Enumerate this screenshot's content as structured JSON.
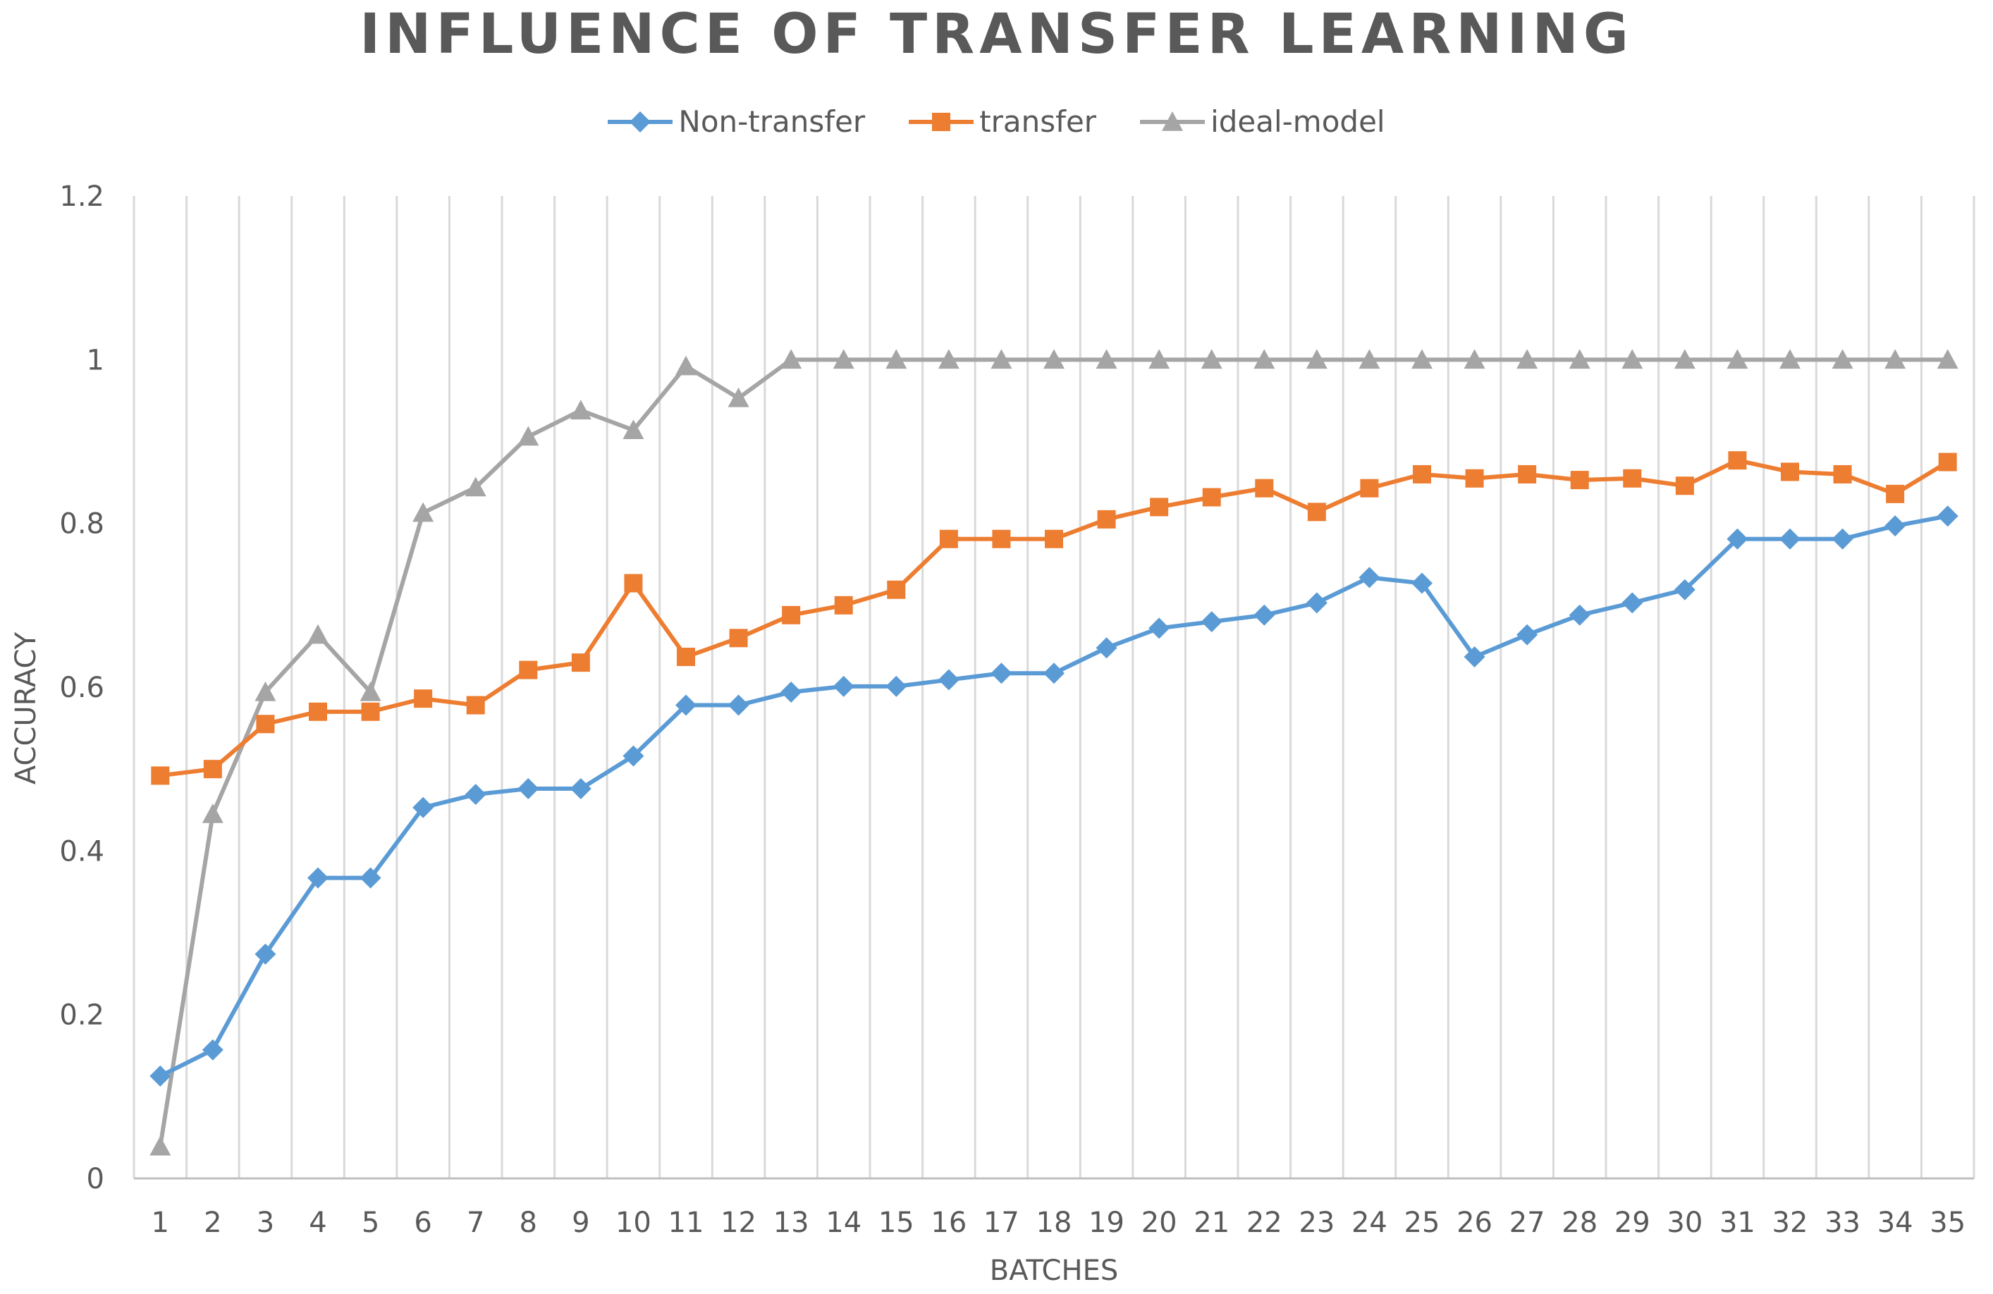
{
  "chart_data": {
    "type": "line",
    "title": "INFLUENCE OF TRANSFER LEARNING",
    "xlabel": "BATCHES",
    "ylabel": "ACCURACY",
    "ylim": [
      0,
      1.2
    ],
    "yticks": [
      "0",
      "0.2",
      "0.4",
      "0.6",
      "0.8",
      "1",
      "1.2"
    ],
    "grid": "vertical",
    "legend_position": "top",
    "categories": [
      "1",
      "2",
      "3",
      "4",
      "5",
      "6",
      "7",
      "8",
      "9",
      "10",
      "11",
      "12",
      "13",
      "14",
      "15",
      "16",
      "17",
      "18",
      "19",
      "20",
      "21",
      "22",
      "23",
      "24",
      "25",
      "26",
      "27",
      "28",
      "29",
      "30",
      "31",
      "32",
      "33",
      "34",
      "35"
    ],
    "series": [
      {
        "name": "Non-transfer",
        "color": "#5b9bd5",
        "marker": "diamond",
        "values": [
          0.125,
          0.157,
          0.274,
          0.367,
          0.367,
          0.453,
          0.469,
          0.476,
          0.476,
          0.516,
          0.578,
          0.578,
          0.594,
          0.601,
          0.601,
          0.609,
          0.617,
          0.617,
          0.648,
          0.672,
          0.68,
          0.688,
          0.703,
          0.734,
          0.727,
          0.637,
          0.664,
          0.688,
          0.703,
          0.719,
          0.781,
          0.781,
          0.781,
          0.797,
          0.809
        ]
      },
      {
        "name": "transfer",
        "color": "#ed7d31",
        "marker": "square",
        "values": [
          0.492,
          0.5,
          0.555,
          0.57,
          0.57,
          0.586,
          0.578,
          0.621,
          0.63,
          0.727,
          0.637,
          0.66,
          0.688,
          0.7,
          0.719,
          0.781,
          0.781,
          0.781,
          0.805,
          0.82,
          0.832,
          0.843,
          0.814,
          0.843,
          0.86,
          0.855,
          0.86,
          0.853,
          0.855,
          0.846,
          0.877,
          0.863,
          0.86,
          0.836,
          0.875
        ]
      },
      {
        "name": "ideal-model",
        "color": "#a5a5a5",
        "marker": "triangle",
        "values": [
          0.039,
          0.445,
          0.594,
          0.664,
          0.594,
          0.813,
          0.844,
          0.906,
          0.938,
          0.914,
          0.992,
          0.953,
          1.0,
          1.0,
          1.0,
          1.0,
          1.0,
          1.0,
          1.0,
          1.0,
          1.0,
          1.0,
          1.0,
          1.0,
          1.0,
          1.0,
          1.0,
          1.0,
          1.0,
          1.0,
          1.0,
          1.0,
          1.0,
          1.0,
          1.0
        ]
      }
    ]
  }
}
